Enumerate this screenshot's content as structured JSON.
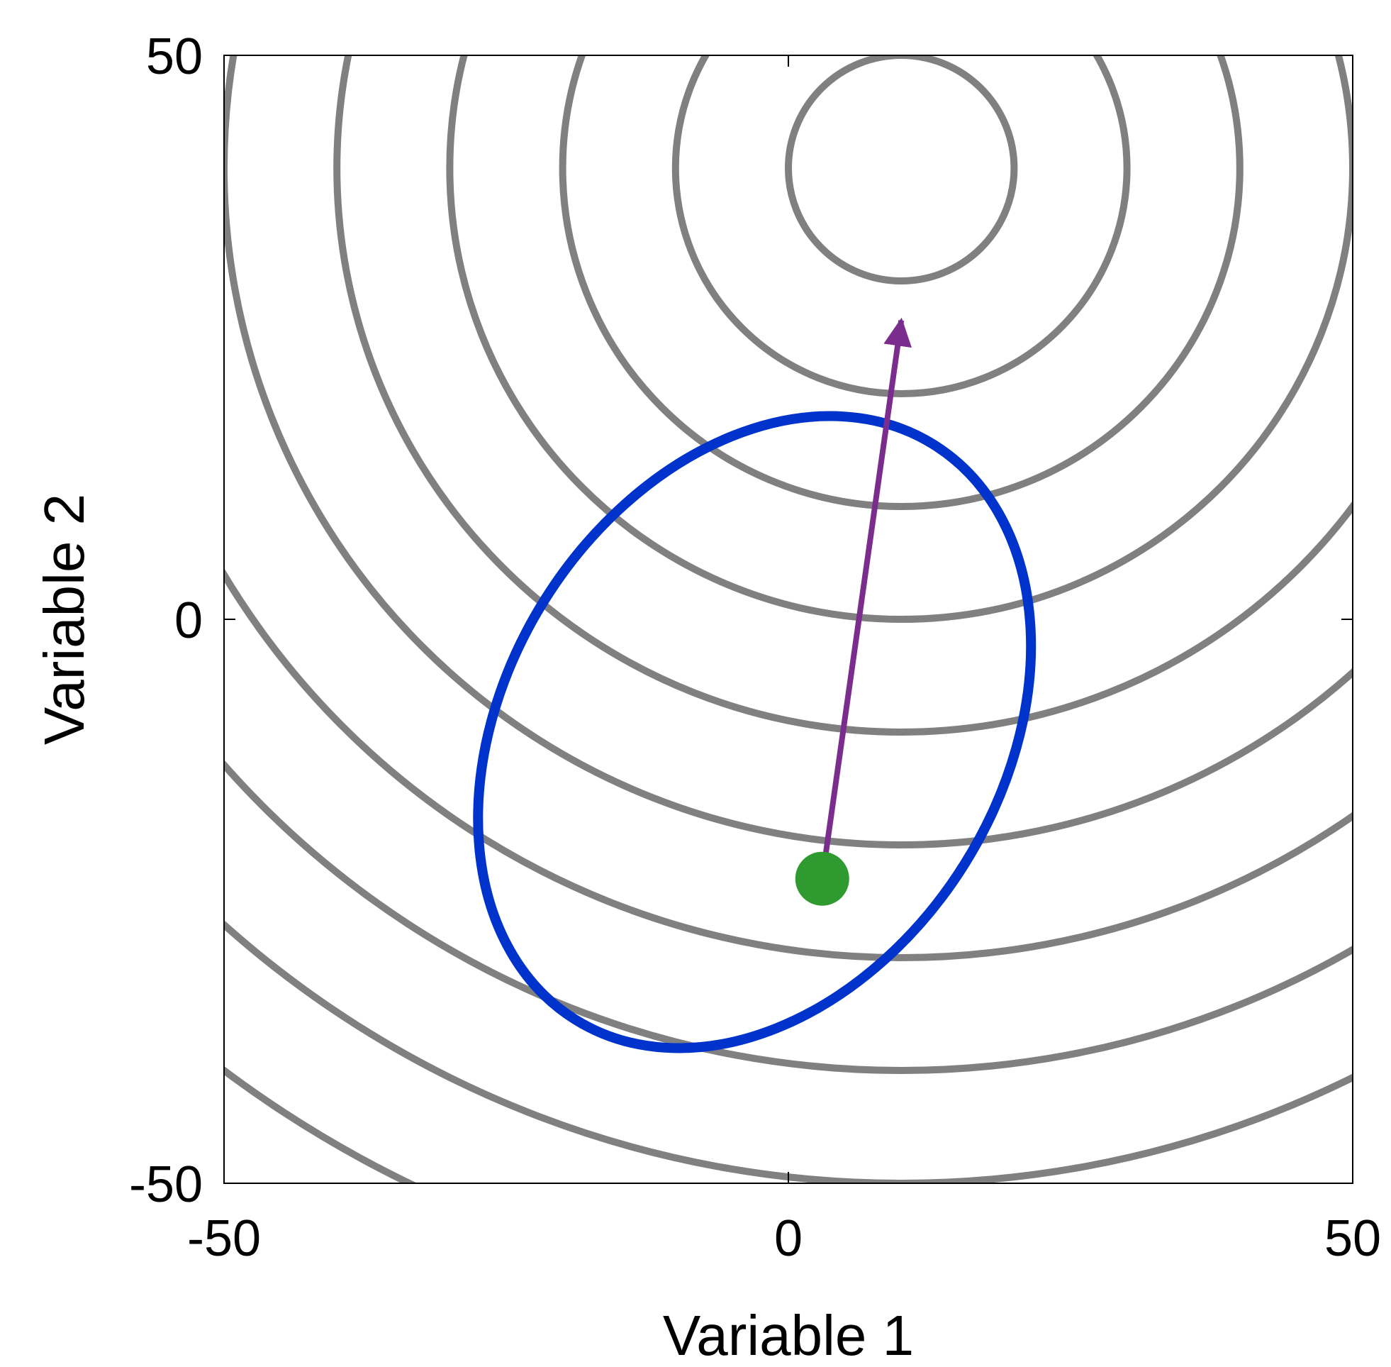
{
  "chart_data": {
    "type": "contour",
    "xlabel": "Variable 1",
    "ylabel": "Variable 2",
    "xlim": [
      -50,
      50
    ],
    "ylim": [
      -50,
      50
    ],
    "x_ticks": [
      -50,
      0,
      50
    ],
    "y_ticks": [
      -50,
      0,
      50
    ],
    "x_tick_labels": [
      "-50",
      "0",
      "50"
    ],
    "y_tick_labels": [
      "-50",
      "0",
      "50"
    ],
    "grid": false,
    "contours": {
      "center": [
        10,
        40
      ],
      "radii": [
        10,
        20,
        30,
        40,
        50,
        60,
        70,
        80,
        90,
        100,
        110
      ],
      "color": "#808080"
    },
    "ellipse": {
      "center": [
        -3,
        -10
      ],
      "semi_axes": [
        30,
        22
      ],
      "angle_deg": 58,
      "color": "#0033cc"
    },
    "arrow": {
      "from": [
        3,
        -23
      ],
      "to": [
        10,
        26.5
      ],
      "color": "#7b2d8e"
    },
    "point": {
      "x": 3,
      "y": -23,
      "color": "#2e9a30"
    }
  }
}
